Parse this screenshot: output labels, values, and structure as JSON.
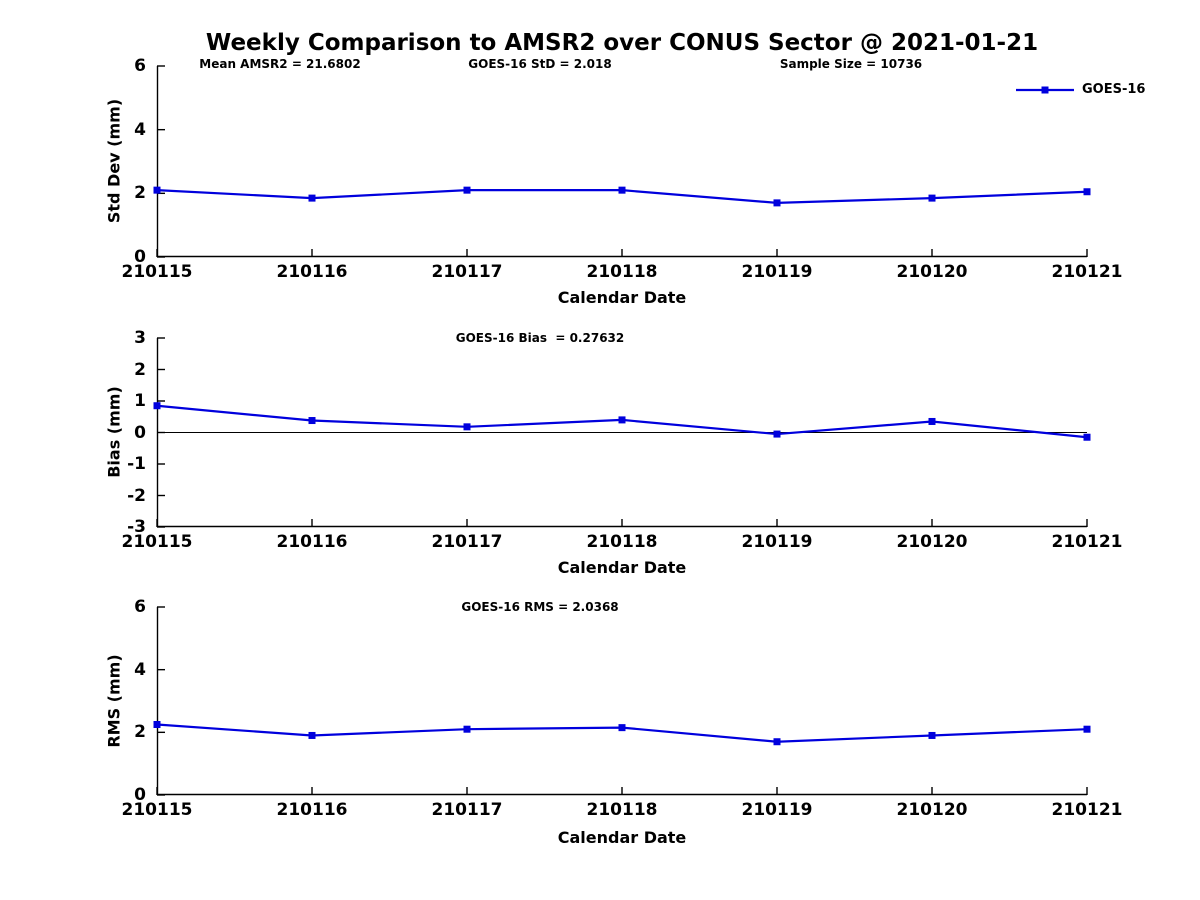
{
  "page": {
    "title": "Weekly Comparison to AMSR2 over CONUS Sector @ 2021-01-21"
  },
  "legend": {
    "label": "GOES-16",
    "line_color": "#0000dd"
  },
  "colors": {
    "series_blue": "#0000dd",
    "axis_black": "#000000"
  },
  "chart_data": [
    {
      "type": "line",
      "categories": [
        "210115",
        "210116",
        "210117",
        "210118",
        "210119",
        "210120",
        "210121"
      ],
      "series": [
        {
          "name": "GOES-16",
          "values": [
            2.1,
            1.85,
            2.1,
            2.1,
            1.7,
            1.85,
            2.05
          ]
        }
      ],
      "annotations": [
        "Mean AMSR2 = 21.6802",
        "GOES-16 StD = 2.018",
        "Sample Size = 10736"
      ],
      "xlabel": "Calendar Date",
      "ylabel": "Std Dev (mm)",
      "ylim": [
        0,
        6
      ],
      "yticks": [
        0,
        2,
        4,
        6
      ],
      "zero_line": false,
      "grid": false,
      "legend_position": "top-right",
      "marker": "square"
    },
    {
      "type": "line",
      "categories": [
        "210115",
        "210116",
        "210117",
        "210118",
        "210119",
        "210120",
        "210121"
      ],
      "series": [
        {
          "name": "GOES-16",
          "values": [
            0.85,
            0.38,
            0.18,
            0.4,
            -0.05,
            0.35,
            -0.15
          ]
        }
      ],
      "annotations": [
        "GOES-16 Bias  = 0.27632"
      ],
      "xlabel": "Calendar Date",
      "ylabel": "Bias (mm)",
      "ylim": [
        -3,
        3
      ],
      "yticks": [
        -3,
        -2,
        -1,
        0,
        1,
        2,
        3
      ],
      "zero_line": true,
      "grid": false,
      "marker": "square"
    },
    {
      "type": "line",
      "categories": [
        "210115",
        "210116",
        "210117",
        "210118",
        "210119",
        "210120",
        "210121"
      ],
      "series": [
        {
          "name": "GOES-16",
          "values": [
            2.25,
            1.9,
            2.1,
            2.15,
            1.7,
            1.9,
            2.1
          ]
        }
      ],
      "annotations": [
        "GOES-16 RMS = 2.0368"
      ],
      "xlabel": "Calendar Date",
      "ylabel": "RMS (mm)",
      "ylim": [
        0,
        6
      ],
      "yticks": [
        0,
        2,
        4,
        6
      ],
      "zero_line": false,
      "grid": false,
      "marker": "square"
    }
  ]
}
